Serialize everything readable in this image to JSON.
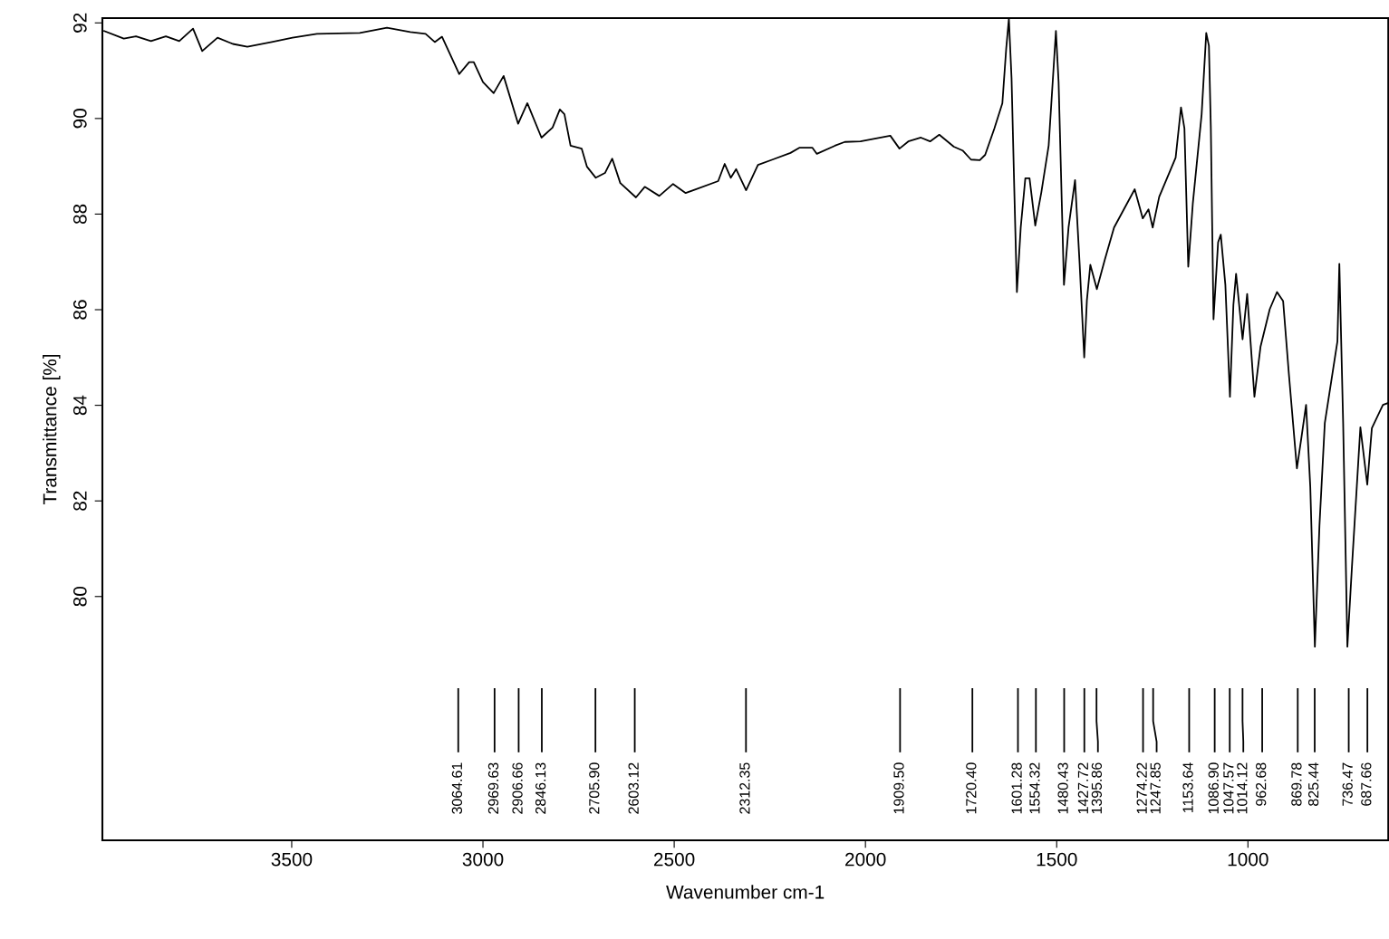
{
  "chart_data": {
    "type": "line",
    "xlabel": "Wavenumber cm-1",
    "ylabel": "Transmittance [%]",
    "xlim": [
      3995,
      633
    ],
    "ylim": [
      74.9,
      92.1
    ],
    "xticks": [
      1000,
      1500,
      2000,
      2500,
      3000,
      3500
    ],
    "yticks": [
      80,
      82,
      84,
      86,
      88,
      90,
      92
    ],
    "grid": false,
    "legend": false,
    "marker": "none",
    "line_style": "solid",
    "series": [
      {
        "color": "#000000",
        "x": [
          3990,
          3939,
          3907,
          3868,
          3829,
          3794,
          3758,
          3734,
          3694,
          3654,
          3616,
          3552,
          3498,
          3434,
          3322,
          3251,
          3190,
          3150,
          3126,
          3107,
          3062,
          3036,
          3024,
          3000,
          2972,
          2946,
          2908,
          2884,
          2847,
          2818,
          2799,
          2787,
          2771,
          2742,
          2728,
          2705,
          2681,
          2662,
          2641,
          2600,
          2577,
          2539,
          2503,
          2470,
          2385,
          2368,
          2352,
          2338,
          2312,
          2281,
          2243,
          2196,
          2172,
          2139,
          2127,
          2080,
          2054,
          2013,
          1935,
          1911,
          1888,
          1855,
          1831,
          1807,
          1769,
          1746,
          1724,
          1701,
          1687,
          1663,
          1642,
          1632,
          1625,
          1618,
          1611,
          1604,
          1594,
          1582,
          1571,
          1556,
          1540,
          1521,
          1502,
          1495,
          1481,
          1469,
          1452,
          1440,
          1428,
          1421,
          1412,
          1395,
          1374,
          1350,
          1296,
          1275,
          1260,
          1249,
          1232,
          1189,
          1175,
          1166,
          1156,
          1144,
          1121,
          1109,
          1102,
          1097,
          1090,
          1078,
          1071,
          1059,
          1047,
          1038,
          1031,
          1014,
          1002,
          983,
          967,
          943,
          924,
          908,
          893,
          872,
          860,
          848,
          837,
          825,
          813,
          799,
          766,
          761,
          751,
          740,
          728,
          706,
          688,
          676,
          647,
          633
        ],
        "values": [
          91.83,
          91.67,
          91.72,
          91.62,
          91.72,
          91.62,
          91.88,
          91.41,
          91.69,
          91.56,
          91.5,
          91.6,
          91.69,
          91.77,
          91.79,
          91.9,
          91.81,
          91.77,
          91.6,
          91.71,
          90.93,
          91.18,
          91.18,
          90.76,
          90.53,
          90.89,
          89.89,
          90.32,
          89.6,
          89.81,
          90.19,
          90.09,
          89.43,
          89.37,
          88.99,
          88.76,
          88.86,
          89.16,
          88.65,
          88.35,
          88.57,
          88.38,
          88.63,
          88.44,
          88.69,
          89.05,
          88.76,
          88.94,
          88.5,
          89.03,
          89.14,
          89.28,
          89.39,
          89.39,
          89.26,
          89.43,
          89.51,
          89.52,
          89.64,
          89.37,
          89.52,
          89.6,
          89.52,
          89.66,
          89.41,
          89.33,
          89.14,
          89.13,
          89.24,
          89.79,
          90.32,
          91.46,
          92.09,
          90.84,
          88.56,
          86.37,
          87.72,
          88.75,
          88.75,
          87.76,
          88.46,
          89.43,
          91.83,
          90.76,
          86.52,
          87.72,
          88.71,
          86.96,
          85.0,
          86.2,
          86.94,
          86.43,
          87.05,
          87.72,
          88.52,
          87.91,
          88.1,
          87.72,
          88.36,
          89.18,
          90.23,
          89.79,
          86.9,
          88.23,
          90.09,
          91.79,
          91.52,
          89.81,
          85.8,
          87.41,
          87.57,
          86.52,
          84.18,
          86.1,
          86.75,
          85.38,
          86.33,
          84.18,
          85.23,
          86.01,
          86.37,
          86.18,
          84.66,
          82.68,
          83.33,
          84.01,
          82.3,
          78.95,
          81.48,
          83.63,
          85.34,
          86.96,
          83.61,
          78.95,
          80.63,
          83.54,
          82.34,
          83.52,
          84.01,
          84.05
        ]
      }
    ],
    "ref_lines": [
      {
        "axis": "x",
        "value": 3064.61,
        "label": "3064.61"
      },
      {
        "axis": "x",
        "value": 2969.63,
        "label": "2969.63"
      },
      {
        "axis": "x",
        "value": 2906.66,
        "label": "2906.66"
      },
      {
        "axis": "x",
        "value": 2846.13,
        "label": "2846.13"
      },
      {
        "axis": "x",
        "value": 2705.9,
        "label": "2705.90"
      },
      {
        "axis": "x",
        "value": 2603.12,
        "label": "2603.12"
      },
      {
        "axis": "x",
        "value": 2312.35,
        "label": "2312.35"
      },
      {
        "axis": "x",
        "value": 1909.5,
        "label": "1909.50"
      },
      {
        "axis": "x",
        "value": 1720.4,
        "label": "1720.40"
      },
      {
        "axis": "x",
        "value": 1601.28,
        "label": "1601.28"
      },
      {
        "axis": "x",
        "value": 1554.32,
        "label": "1554.32"
      },
      {
        "axis": "x",
        "value": 1480.43,
        "label": "1480.43"
      },
      {
        "axis": "x",
        "value": 1427.72,
        "label": "1427.72"
      },
      {
        "axis": "x",
        "value": 1395.86,
        "label": "1395.86"
      },
      {
        "axis": "x",
        "value": 1274.22,
        "label": "1274.22"
      },
      {
        "axis": "x",
        "value": 1247.85,
        "label": "1247.85"
      },
      {
        "axis": "x",
        "value": 1153.64,
        "label": "1153.64"
      },
      {
        "axis": "x",
        "value": 1086.9,
        "label": "1086.90"
      },
      {
        "axis": "x",
        "value": 1047.57,
        "label": "1047.57"
      },
      {
        "axis": "x",
        "value": 1014.12,
        "label": "1014.12"
      },
      {
        "axis": "x",
        "value": 962.68,
        "label": "962.68"
      },
      {
        "axis": "x",
        "value": 869.78,
        "label": "869.78"
      },
      {
        "axis": "x",
        "value": 825.44,
        "label": "825.44"
      },
      {
        "axis": "x",
        "value": 736.47,
        "label": "736.47"
      },
      {
        "axis": "x",
        "value": 687.66,
        "label": "687.66"
      }
    ]
  }
}
